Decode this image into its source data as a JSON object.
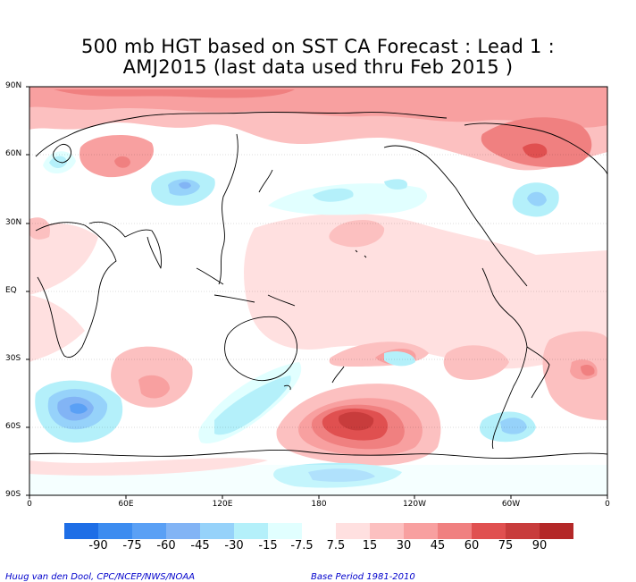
{
  "title": {
    "line1": "500 mb HGT based on SST CA Forecast : Lead 1 :",
    "line2": "AMJ2015 (last data used thru Feb 2015 )"
  },
  "axes": {
    "lat_labels": [
      "90N",
      "60N",
      "30N",
      "EQ",
      "30S",
      "60S",
      "90S"
    ],
    "lon_labels": [
      "0",
      "60E",
      "120E",
      "180",
      "120W",
      "60W",
      "0"
    ]
  },
  "colorbar": {
    "labels": [
      "-90",
      "-75",
      "-60",
      "-45",
      "-30",
      "-15",
      "-7.5",
      "7.5",
      "15",
      "30",
      "45",
      "60",
      "75",
      "90"
    ],
    "colors": [
      "#1e6ee6",
      "#3c8cf0",
      "#5aa0f5",
      "#82b4f5",
      "#96d2fa",
      "#b4f0fa",
      "#e1ffff",
      "#ffffff",
      "#ffe0e0",
      "#fcc0c0",
      "#f8a0a0",
      "#f08080",
      "#e05050",
      "#c83c3c",
      "#b42828"
    ]
  },
  "footer": {
    "credit": "Huug van den Dool, CPC/NCEP/NWS/NOAA",
    "base_period": "Base Period 1981-2010"
  }
}
